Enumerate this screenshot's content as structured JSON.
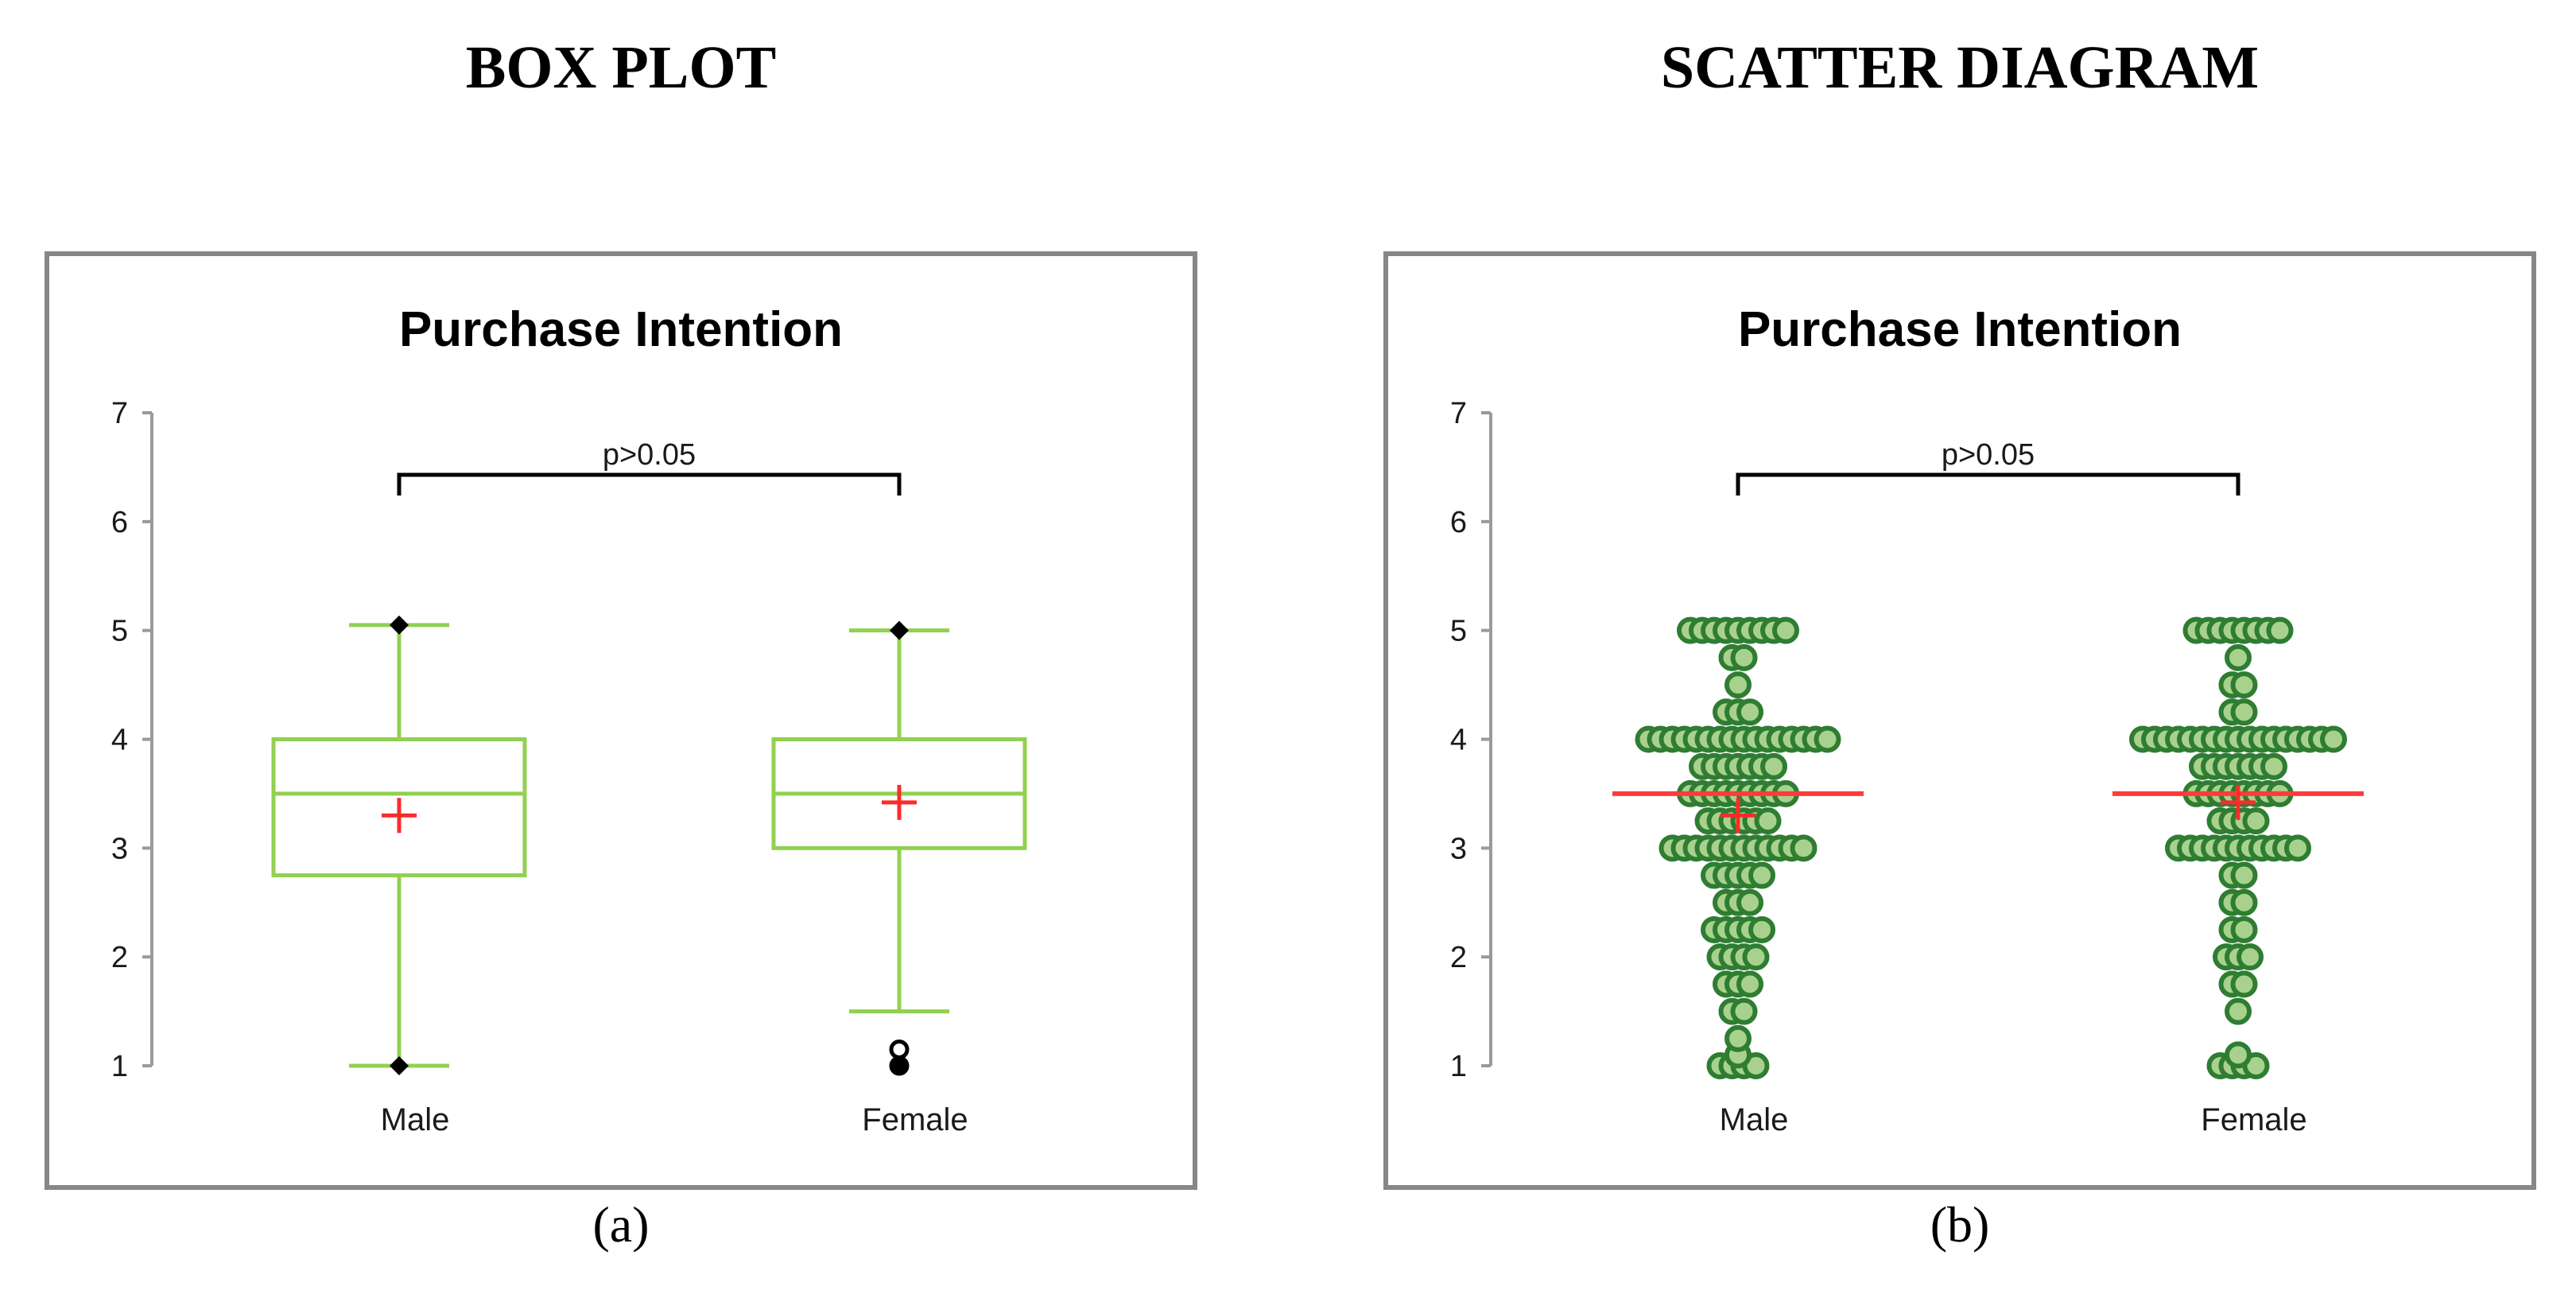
{
  "headings": {
    "left": "BOX PLOT",
    "right": "SCATTER DIAGRAM"
  },
  "captions": {
    "left": "(a)",
    "right": "(b)"
  },
  "chart_data": [
    {
      "type": "box",
      "title": "Purchase Intention",
      "xlabel": "",
      "ylabel": "",
      "ylim": [
        1,
        7
      ],
      "yticks": [
        "1",
        "2",
        "3",
        "4",
        "5",
        "6",
        "7"
      ],
      "categories": [
        "Male",
        "Female"
      ],
      "significance": "p>0.05",
      "grid": false,
      "boxes": [
        {
          "category": "Male",
          "min": 1.0,
          "q1": 2.75,
          "median": 3.5,
          "q3": 4.0,
          "max": 5.05,
          "mean": 3.3,
          "outliers": []
        },
        {
          "category": "Female",
          "min": 1.5,
          "q1": 3.0,
          "median": 3.5,
          "q3": 4.0,
          "max": 5.0,
          "mean": 3.42,
          "outliers": [
            1.0,
            1.15
          ]
        }
      ],
      "colors": {
        "box": "#92d050",
        "mean": "#ff2a2a",
        "extreme": "#000000"
      }
    },
    {
      "type": "scatter",
      "title": "Purchase Intention",
      "xlabel": "",
      "ylabel": "",
      "ylim": [
        1,
        7
      ],
      "yticks": [
        "1",
        "2",
        "3",
        "4",
        "5",
        "6",
        "7"
      ],
      "categories": [
        "Male",
        "Female"
      ],
      "significance": "p>0.05",
      "grid": false,
      "groups": [
        {
          "category": "Male",
          "median": 3.5,
          "mean": 3.3,
          "levels": [
            {
              "y": 1.0,
              "count": 4
            },
            {
              "y": 1.1,
              "count": 1
            },
            {
              "y": 1.25,
              "count": 1
            },
            {
              "y": 1.5,
              "count": 2
            },
            {
              "y": 1.75,
              "count": 3
            },
            {
              "y": 2.0,
              "count": 4
            },
            {
              "y": 2.25,
              "count": 5
            },
            {
              "y": 2.5,
              "count": 3
            },
            {
              "y": 2.75,
              "count": 5
            },
            {
              "y": 3.0,
              "count": 12
            },
            {
              "y": 3.25,
              "count": 6
            },
            {
              "y": 3.5,
              "count": 9
            },
            {
              "y": 3.75,
              "count": 7
            },
            {
              "y": 4.0,
              "count": 16
            },
            {
              "y": 4.25,
              "count": 3
            },
            {
              "y": 4.5,
              "count": 1
            },
            {
              "y": 4.75,
              "count": 2
            },
            {
              "y": 5.0,
              "count": 9
            }
          ]
        },
        {
          "category": "Female",
          "median": 3.5,
          "mean": 3.42,
          "levels": [
            {
              "y": 1.0,
              "count": 4
            },
            {
              "y": 1.1,
              "count": 1
            },
            {
              "y": 1.5,
              "count": 1
            },
            {
              "y": 1.75,
              "count": 2
            },
            {
              "y": 2.0,
              "count": 3
            },
            {
              "y": 2.25,
              "count": 2
            },
            {
              "y": 2.5,
              "count": 2
            },
            {
              "y": 2.75,
              "count": 2
            },
            {
              "y": 3.0,
              "count": 11
            },
            {
              "y": 3.25,
              "count": 4
            },
            {
              "y": 3.5,
              "count": 8
            },
            {
              "y": 3.75,
              "count": 7
            },
            {
              "y": 4.0,
              "count": 17
            },
            {
              "y": 4.25,
              "count": 2
            },
            {
              "y": 4.5,
              "count": 2
            },
            {
              "y": 4.75,
              "count": 1
            },
            {
              "y": 5.0,
              "count": 8
            }
          ]
        }
      ],
      "colors": {
        "dot_fill": "#a9d18e",
        "dot_stroke": "#2e7d32",
        "median_line": "#ff3b3b",
        "mean": "#ff2a2a"
      }
    }
  ]
}
